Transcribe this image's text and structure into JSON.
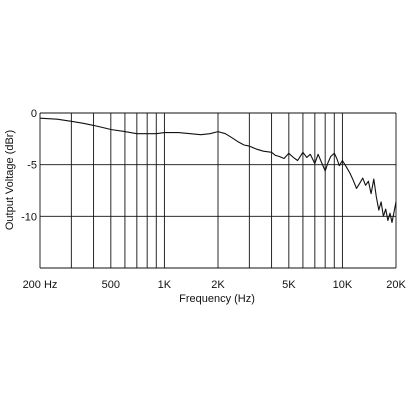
{
  "chart_data": {
    "type": "line",
    "title": "",
    "xlabel": "Frequency (Hz)",
    "ylabel": "Output Voltage (dBr)",
    "x_scale": "log",
    "xlim": [
      200,
      20000
    ],
    "ylim": [
      -15,
      0
    ],
    "grid": true,
    "legend": "none",
    "x_major_ticks": [
      {
        "value": 200,
        "label": "200 Hz"
      },
      {
        "value": 500,
        "label": "500"
      },
      {
        "value": 1000,
        "label": "1K"
      },
      {
        "value": 2000,
        "label": "2K"
      },
      {
        "value": 5000,
        "label": "5K"
      },
      {
        "value": 10000,
        "label": "10K"
      },
      {
        "value": 20000,
        "label": "20K"
      }
    ],
    "x_grid_values": [
      200,
      300,
      400,
      500,
      600,
      700,
      800,
      900,
      1000,
      2000,
      3000,
      4000,
      5000,
      6000,
      7000,
      8000,
      9000,
      10000,
      20000
    ],
    "y_ticks": [
      {
        "value": 0,
        "label": "0"
      },
      {
        "value": -5,
        "label": "-5"
      },
      {
        "value": -10,
        "label": "-10"
      }
    ],
    "y_grid_values": [
      0,
      -5,
      -10,
      -15
    ],
    "series": [
      {
        "color": "#111111",
        "x": [
          200,
          250,
          300,
          350,
          400,
          450,
          500,
          600,
          700,
          800,
          900,
          1000,
          1200,
          1400,
          1600,
          1800,
          2000,
          2200,
          2400,
          2600,
          2800,
          3000,
          3300,
          3600,
          4000,
          4200,
          4400,
          4700,
          5000,
          5300,
          5600,
          6000,
          6300,
          6600,
          7000,
          7300,
          7600,
          8000,
          8300,
          8600,
          9000,
          9300,
          9600,
          10000,
          10500,
          11000,
          11500,
          12000,
          12500,
          13000,
          13500,
          14000,
          14500,
          15000,
          15500,
          16000,
          16500,
          17000,
          17500,
          18000,
          18500,
          19000,
          19500,
          20000
        ],
        "y": [
          -0.5,
          -0.6,
          -0.8,
          -1.0,
          -1.2,
          -1.4,
          -1.6,
          -1.8,
          -2.0,
          -2.0,
          -2.0,
          -1.9,
          -1.9,
          -2.0,
          -2.1,
          -2.0,
          -1.8,
          -2.0,
          -2.4,
          -2.8,
          -3.1,
          -3.2,
          -3.5,
          -3.7,
          -3.8,
          -4.1,
          -4.2,
          -4.4,
          -3.9,
          -4.3,
          -4.6,
          -3.8,
          -4.3,
          -4.0,
          -4.9,
          -4.0,
          -4.7,
          -5.6,
          -4.8,
          -4.2,
          -3.9,
          -4.4,
          -5.1,
          -4.6,
          -5.2,
          -5.8,
          -6.5,
          -7.3,
          -6.8,
          -6.3,
          -7.0,
          -6.6,
          -7.8,
          -6.4,
          -8.1,
          -9.4,
          -8.6,
          -10.0,
          -9.3,
          -10.4,
          -9.7,
          -10.6,
          -9.6,
          -8.6
        ]
      }
    ]
  }
}
